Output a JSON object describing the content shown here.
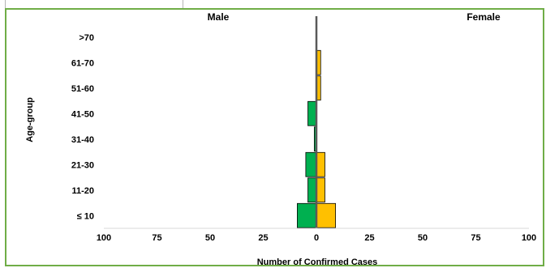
{
  "chart_data": {
    "type": "bar",
    "orientation": "horizontal",
    "style": "population-pyramid",
    "categories": [
      "≤ 10",
      "11-20",
      "21-30",
      "31-40",
      "41-50",
      "51-60",
      "61-70",
      ">70"
    ],
    "series": [
      {
        "name": "Male",
        "values": [
          9,
          4,
          5,
          1,
          4,
          0,
          0,
          0
        ],
        "color": "#00b050"
      },
      {
        "name": "Female",
        "values": [
          9,
          4,
          4,
          0,
          0,
          2,
          2,
          0
        ],
        "color": "#ffc000"
      }
    ],
    "xlabel": "Number of Confirmed Cases",
    "ylabel": "Age-group",
    "xlim": [
      -100,
      100
    ],
    "x_ticks": [
      -100,
      -75,
      -50,
      -25,
      0,
      25,
      50,
      75,
      100
    ],
    "x_tick_labels": [
      "100",
      "75",
      "50",
      "25",
      "0",
      "25",
      "50",
      "75",
      "100"
    ],
    "left_header": "Male",
    "right_header": "Female",
    "grid": false,
    "legend": "none"
  },
  "colors": {
    "frame": "#70ad47",
    "male": "#00b050",
    "female": "#ffc000",
    "center_line": "#595959"
  }
}
